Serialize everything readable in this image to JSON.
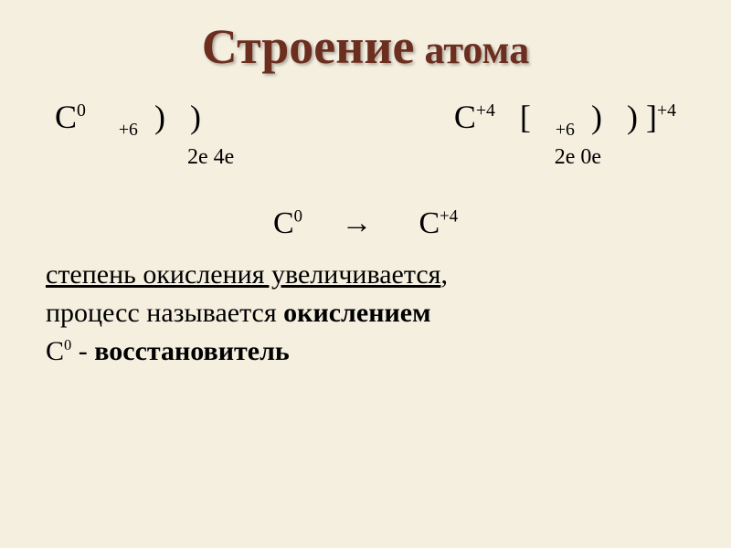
{
  "slide": {
    "background_color": "#f5efe0",
    "title": {
      "part1": "Строение",
      "part1_fontsize": 54,
      "part2": " атома",
      "part2_fontsize": 44,
      "color": "#6b2e1f"
    },
    "formula_row": {
      "fontsize": 36,
      "color": "#000000",
      "left": {
        "c": "С",
        "c_sup": "0",
        "charge": "+6",
        "paren1": ")",
        "paren2": ")"
      },
      "right": {
        "c": "С",
        "c_sup": "+4",
        "bracket_open": "[",
        "charge": "+6",
        "paren1": ")",
        "paren2": ")",
        "bracket_close": "]",
        "outer_sup": "+4"
      }
    },
    "electron_row": {
      "fontsize": 24,
      "color": "#000000",
      "left": "2е  4е",
      "right": "2е 0е"
    },
    "reaction": {
      "fontsize": 34,
      "color": "#000000",
      "c1": "С",
      "c1_sup": "0",
      "arrow": "→",
      "c2": "С",
      "c2_sup": "+4"
    },
    "lines": {
      "fontsize": 30,
      "color": "#000000",
      "line1_underlined": " степень окисления увеличивается",
      "line1_comma": ",",
      "line2_plain": "процесс называется ",
      "line2_bold": "окислением",
      "line3_c": "С",
      "line3_sup": "0",
      "line3_plain": "  - ",
      "line3_bold": "восстановитель"
    }
  }
}
